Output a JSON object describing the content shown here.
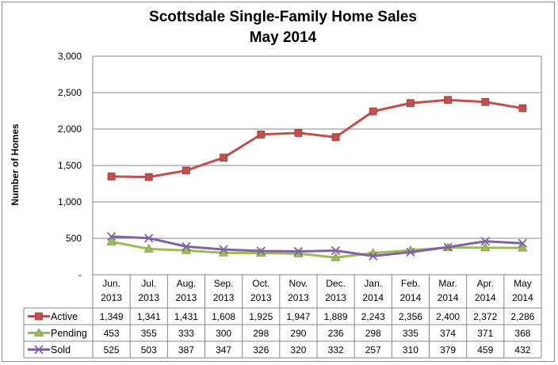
{
  "chart_data": {
    "type": "line",
    "title": "Scottsdale Single-Family Home Sales",
    "subtitle": "May 2014",
    "xlabel": "",
    "ylabel": "Number of Homes",
    "ylim": [
      0,
      3000
    ],
    "yticks": [
      "-",
      "500",
      "1,000",
      "1,500",
      "2,000",
      "2,500",
      "3,000"
    ],
    "grid": true,
    "legend": "data-table",
    "categories": [
      [
        "Jun.",
        "2013"
      ],
      [
        "Jul.",
        "2013"
      ],
      [
        "Aug.",
        "2013"
      ],
      [
        "Sep.",
        "2013"
      ],
      [
        "Oct.",
        "2013"
      ],
      [
        "Nov.",
        "2013"
      ],
      [
        "Dec.",
        "2013"
      ],
      [
        "Jan.",
        "2014"
      ],
      [
        "Feb.",
        "2014"
      ],
      [
        "Mar.",
        "2014"
      ],
      [
        "Apr.",
        "2014"
      ],
      [
        "May",
        "2014"
      ]
    ],
    "series": [
      {
        "name": "Active",
        "color": "#c0504d",
        "marker": "square",
        "values": [
          1349,
          1341,
          1431,
          1608,
          1925,
          1947,
          1889,
          2243,
          2356,
          2400,
          2372,
          2286
        ],
        "labels": [
          "1,349",
          "1,341",
          "1,431",
          "1,608",
          "1,925",
          "1,947",
          "1,889",
          "2,243",
          "2,356",
          "2,400",
          "2,372",
          "2,286"
        ]
      },
      {
        "name": "Pending",
        "color": "#9bbb59",
        "marker": "triangle",
        "values": [
          453,
          355,
          333,
          300,
          298,
          290,
          236,
          298,
          335,
          374,
          371,
          368
        ],
        "labels": [
          "453",
          "355",
          "333",
          "300",
          "298",
          "290",
          "236",
          "298",
          "335",
          "374",
          "371",
          "368"
        ]
      },
      {
        "name": "Sold",
        "color": "#8064a2",
        "marker": "x",
        "values": [
          525,
          503,
          387,
          347,
          326,
          320,
          332,
          257,
          310,
          379,
          459,
          432
        ],
        "labels": [
          "525",
          "503",
          "387",
          "347",
          "326",
          "320",
          "332",
          "257",
          "310",
          "379",
          "459",
          "432"
        ]
      }
    ]
  }
}
